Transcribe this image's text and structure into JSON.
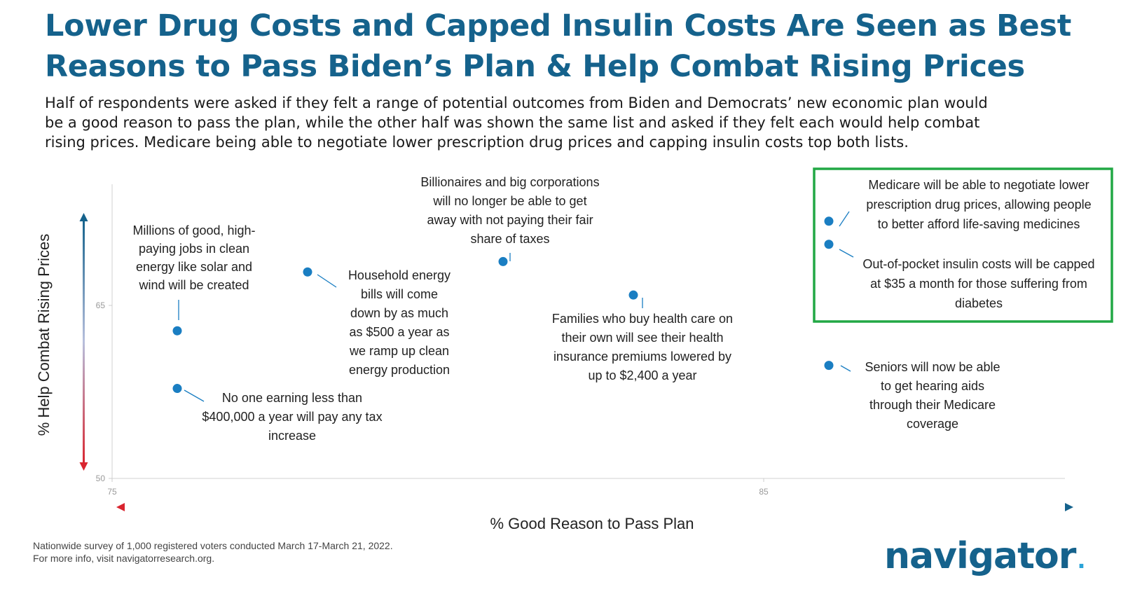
{
  "header": {
    "title_line1": "Lower Drug Costs and Capped Insulin Costs Are Seen as Best",
    "title_line2": "Reasons to Pass Biden’s Plan & Help Combat Rising Prices",
    "subtitle_line1": "Half of respondents were asked if they felt a range of potential outcomes from Biden and Democrats’ new economic plan would",
    "subtitle_line2": "be a good reason to pass the plan, while the other half was shown the same list and asked if they felt each would help combat",
    "subtitle_line3": "rising prices. Medicare being able to negotiate lower prescription drug prices and capping insulin costs top both lists."
  },
  "chart_data": {
    "type": "scatter",
    "xlabel": "% Good Reason to Pass Plan",
    "ylabel": "% Help Combat Rising Prices",
    "xlim": [
      75,
      90
    ],
    "ylim": [
      50,
      75
    ],
    "xticks": [
      75,
      85
    ],
    "yticks": [
      50,
      65
    ],
    "point_color": "#1a7ec2",
    "highlight_color": "#22a845",
    "points": [
      {
        "x": 76.0,
        "y": 62.8,
        "label": [
          "Millions of good, high-",
          "paying jobs in clean",
          "energy like solar and",
          "wind will be created"
        ]
      },
      {
        "x": 76.0,
        "y": 57.8,
        "label": [
          "No one earning less than",
          "$400,000 a year will pay any tax",
          "increase"
        ]
      },
      {
        "x": 78.0,
        "y": 67.9,
        "label": [
          "Household energy",
          "bills will come",
          "down by as much",
          "as $500 a year as",
          "we ramp up clean",
          "energy production"
        ]
      },
      {
        "x": 81.0,
        "y": 68.8,
        "label": [
          "Billionaires and big corporations",
          "will no longer be able to get",
          "away with not paying their fair",
          "share of taxes"
        ]
      },
      {
        "x": 83.0,
        "y": 65.9,
        "label": [
          "Families who buy health care on",
          "their own will see their health",
          "insurance premiums lowered by",
          "up to $2,400 a year"
        ]
      },
      {
        "x": 86.0,
        "y": 59.8,
        "label": [
          "Seniors will now be able",
          "to get hearing aids",
          "through their Medicare",
          "coverage"
        ]
      },
      {
        "x": 86.0,
        "y": 72.3,
        "highlight": true,
        "label": [
          "Medicare will be able to negotiate lower",
          "prescription drug prices, allowing people",
          "to better afford life-saving medicines"
        ]
      },
      {
        "x": 86.0,
        "y": 70.3,
        "highlight": true,
        "label": [
          "Out-of-pocket insulin costs will be capped",
          "at $35 a month for those suffering from",
          "diabetes"
        ]
      }
    ]
  },
  "footer": {
    "note_line1": "Nationwide survey of 1,000 registered voters conducted March 17-March 21, 2022.",
    "note_line2": "For more info, visit navigatorresearch.org.",
    "logo_text": "navigator",
    "logo_dot": "."
  }
}
